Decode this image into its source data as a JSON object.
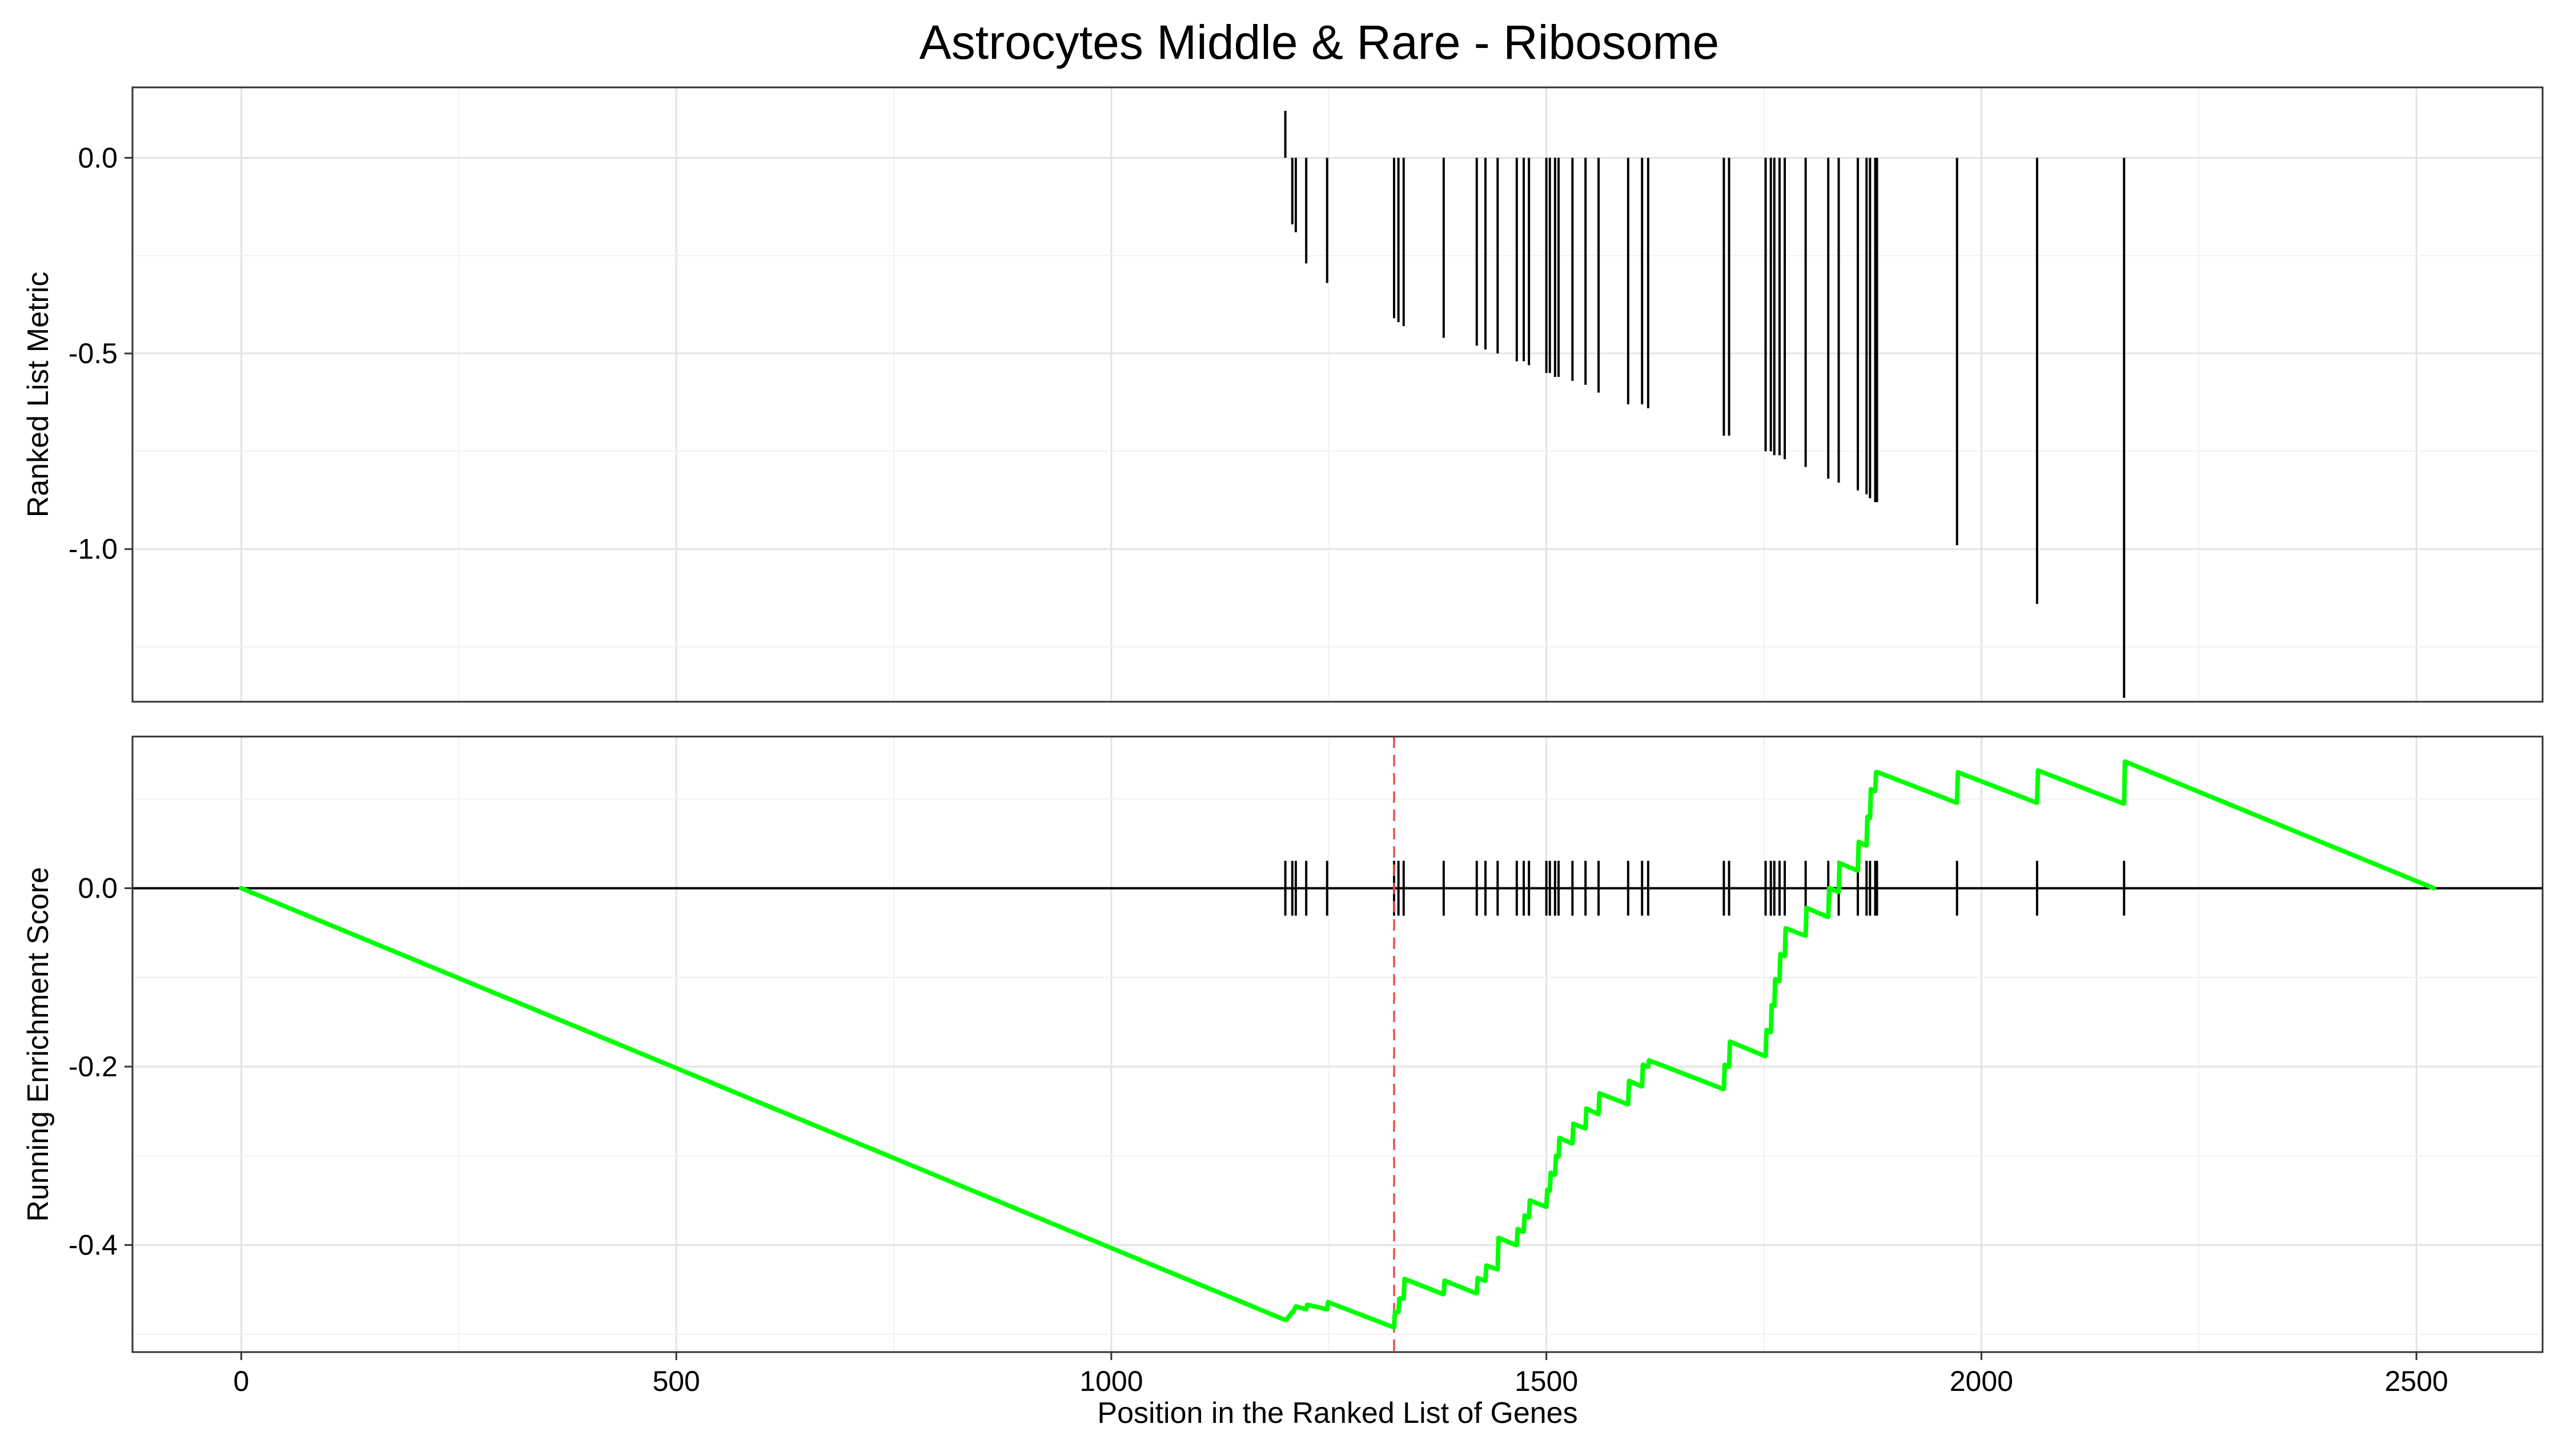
{
  "chart_data": {
    "type": "line",
    "title": "Astrocytes Middle & Rare - Ribosome",
    "xlabel": "Position in the Ranked List of Genes",
    "xlim": [
      -125,
      2645
    ],
    "x_ticks": [
      0,
      500,
      1000,
      1500,
      2000,
      2500
    ],
    "x_tick_labels": [
      "0",
      "500",
      "1000",
      "1500",
      "2000",
      "2500"
    ],
    "grid": true,
    "legend": "none",
    "panels": [
      {
        "name": "ranked-list-metric",
        "type": "bar",
        "ylabel": "Ranked List Metric",
        "ylim": [
          -1.39,
          0.18
        ],
        "y_ticks": [
          0.0,
          -0.5,
          -1.0
        ],
        "y_tick_labels": [
          "0.0",
          "-0.5",
          "-1.0"
        ],
        "bar_color": "#000000",
        "x": [
          1200,
          1208,
          1212,
          1224,
          1248,
          1325,
          1330,
          1336,
          1382,
          1420,
          1430,
          1444,
          1466,
          1474,
          1480,
          1500,
          1504,
          1510,
          1514,
          1530,
          1545,
          1560,
          1594,
          1610,
          1617,
          1704,
          1710,
          1752,
          1758,
          1762,
          1768,
          1774,
          1798,
          1824,
          1836,
          1858,
          1868,
          1872,
          1878,
          1880,
          1972,
          2064,
          2164
        ],
        "values": [
          0.12,
          -0.17,
          -0.19,
          -0.27,
          -0.32,
          -0.41,
          -0.42,
          -0.43,
          -0.46,
          -0.48,
          -0.49,
          -0.5,
          -0.52,
          -0.52,
          -0.53,
          -0.55,
          -0.55,
          -0.56,
          -0.56,
          -0.57,
          -0.58,
          -0.6,
          -0.63,
          -0.63,
          -0.64,
          -0.71,
          -0.71,
          -0.75,
          -0.75,
          -0.76,
          -0.76,
          -0.77,
          -0.79,
          -0.82,
          -0.83,
          -0.85,
          -0.86,
          -0.87,
          -0.88,
          -0.88,
          -0.99,
          -1.14,
          -1.38
        ]
      },
      {
        "name": "running-enrichment-score",
        "type": "line",
        "ylabel": "Running Enrichment Score",
        "ylim": [
          -0.52,
          0.17
        ],
        "y_ticks": [
          0.0,
          -0.2,
          -0.4
        ],
        "y_tick_labels": [
          "0.0",
          "-0.2",
          "-0.4"
        ],
        "line_color": "#00ff00",
        "peak_marker_x": 1325,
        "peak_marker_color": "#e85050",
        "zero_line_color": "#000000",
        "hit_marks_color": "#000000",
        "series": [
          {
            "x": [
              0,
              1200,
              1201,
              1208,
              1209,
              1212,
              1213,
              1224,
              1225,
              1248,
              1249,
              1324,
              1325,
              1326,
              1330,
              1331,
              1336,
              1337,
              1381,
              1382,
              1383,
              1419,
              1420,
              1421,
              1429,
              1430,
              1431,
              1443,
              1444,
              1445,
              1465,
              1466,
              1467,
              1473,
              1474,
              1475,
              1479,
              1480,
              1481,
              1499,
              1500,
              1501,
              1503,
              1504,
              1505,
              1509,
              1510,
              1511,
              1513,
              1514,
              1515,
              1529,
              1530,
              1531,
              1544,
              1545,
              1546,
              1559,
              1560,
              1561,
              1593,
              1594,
              1595,
              1609,
              1610,
              1611,
              1616,
              1617,
              1618,
              1703,
              1704,
              1705,
              1709,
              1710,
              1711,
              1751,
              1752,
              1753,
              1757,
              1758,
              1759,
              1761,
              1762,
              1763,
              1767,
              1768,
              1769,
              1773,
              1774,
              1775,
              1797,
              1798,
              1799,
              1823,
              1824,
              1825,
              1835,
              1836,
              1837,
              1857,
              1858,
              1859,
              1867,
              1868,
              1869,
              1871,
              1872,
              1873,
              1877,
              1878,
              1879,
              1880,
              1881,
              1971,
              1972,
              1973,
              2063,
              2064,
              2065,
              2163,
              2164,
              2165,
              2520
            ],
            "values": [
              0.0,
              -0.484,
              -0.484,
              -0.475,
              -0.475,
              -0.469,
              -0.469,
              -0.472,
              -0.467,
              -0.472,
              -0.464,
              -0.492,
              -0.492,
              -0.475,
              -0.475,
              -0.46,
              -0.46,
              -0.438,
              -0.455,
              -0.455,
              -0.44,
              -0.454,
              -0.454,
              -0.437,
              -0.44,
              -0.44,
              -0.423,
              -0.427,
              -0.427,
              -0.392,
              -0.4,
              -0.4,
              -0.382,
              -0.385,
              -0.385,
              -0.367,
              -0.369,
              -0.369,
              -0.35,
              -0.357,
              -0.357,
              -0.338,
              -0.339,
              -0.339,
              -0.319,
              -0.321,
              -0.321,
              -0.3,
              -0.301,
              -0.301,
              -0.28,
              -0.286,
              -0.286,
              -0.264,
              -0.269,
              -0.269,
              -0.247,
              -0.253,
              -0.253,
              -0.23,
              -0.242,
              -0.242,
              -0.216,
              -0.222,
              -0.222,
              -0.198,
              -0.2,
              -0.2,
              -0.193,
              -0.225,
              -0.225,
              -0.198,
              -0.2,
              -0.2,
              -0.172,
              -0.188,
              -0.188,
              -0.159,
              -0.161,
              -0.161,
              -0.131,
              -0.132,
              -0.132,
              -0.102,
              -0.104,
              -0.104,
              -0.074,
              -0.076,
              -0.076,
              -0.045,
              -0.053,
              -0.053,
              -0.022,
              -0.032,
              -0.032,
              0.0,
              -0.004,
              -0.004,
              0.028,
              0.02,
              0.02,
              0.052,
              0.048,
              0.048,
              0.08,
              0.079,
              0.079,
              0.111,
              0.109,
              0.109,
              0.13,
              0.13,
              0.13,
              0.096,
              0.096,
              0.13,
              0.096,
              0.096,
              0.132,
              0.095,
              0.095,
              0.142,
              0.0
            ]
          }
        ]
      }
    ]
  }
}
